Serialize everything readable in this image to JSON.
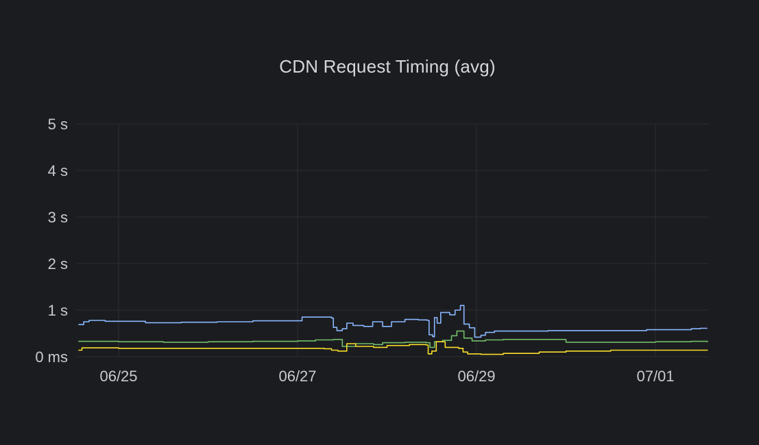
{
  "chart_data": {
    "type": "line",
    "title": "CDN Request Timing (avg)",
    "xlabel": "",
    "ylabel": "",
    "x_ticks": [
      {
        "label": "06/25",
        "day": 0
      },
      {
        "label": "06/27",
        "day": 2
      },
      {
        "label": "06/29",
        "day": 4
      },
      {
        "label": "07/01",
        "day": 6
      }
    ],
    "y_ticks": [
      {
        "label": "0 ms",
        "value": 0
      },
      {
        "label": "1 s",
        "value": 1
      },
      {
        "label": "2 s",
        "value": 2
      },
      {
        "label": "3 s",
        "value": 3
      },
      {
        "label": "4 s",
        "value": 4
      },
      {
        "label": "5 s",
        "value": 5
      }
    ],
    "ylim": [
      0,
      5
    ],
    "xlim_days": [
      -0.47,
      6.58
    ],
    "grid": true,
    "legend": "none",
    "series": [
      {
        "color": "#8ab8ff",
        "points": [
          [
            -0.45,
            0.69
          ],
          [
            -0.39,
            0.75
          ],
          [
            -0.33,
            0.78
          ],
          [
            -0.15,
            0.76
          ],
          [
            0.3,
            0.73
          ],
          [
            0.7,
            0.74
          ],
          [
            1.1,
            0.75
          ],
          [
            1.5,
            0.77
          ],
          [
            2.05,
            0.85
          ],
          [
            2.38,
            0.83
          ],
          [
            2.4,
            0.63
          ],
          [
            2.44,
            0.56
          ],
          [
            2.5,
            0.6
          ],
          [
            2.55,
            0.72
          ],
          [
            2.62,
            0.67
          ],
          [
            2.74,
            0.65
          ],
          [
            2.84,
            0.75
          ],
          [
            2.95,
            0.65
          ],
          [
            3.05,
            0.75
          ],
          [
            3.2,
            0.8
          ],
          [
            3.35,
            0.79
          ],
          [
            3.45,
            0.78
          ],
          [
            3.47,
            0.47
          ],
          [
            3.51,
            0.43
          ],
          [
            3.53,
            0.84
          ],
          [
            3.56,
            0.72
          ],
          [
            3.6,
            0.95
          ],
          [
            3.7,
            0.9
          ],
          [
            3.76,
            1.0
          ],
          [
            3.82,
            1.1
          ],
          [
            3.86,
            0.7
          ],
          [
            3.92,
            0.62
          ],
          [
            3.98,
            0.42
          ],
          [
            4.05,
            0.46
          ],
          [
            4.1,
            0.52
          ],
          [
            4.2,
            0.55
          ],
          [
            4.8,
            0.56
          ],
          [
            5.0,
            0.56
          ],
          [
            5.4,
            0.56
          ],
          [
            5.9,
            0.58
          ],
          [
            6.4,
            0.6
          ],
          [
            6.5,
            0.61
          ],
          [
            6.58,
            0.61
          ]
        ]
      },
      {
        "color": "#73bf69",
        "points": [
          [
            -0.45,
            0.33
          ],
          [
            0.0,
            0.32
          ],
          [
            0.5,
            0.31
          ],
          [
            1.0,
            0.32
          ],
          [
            1.5,
            0.33
          ],
          [
            2.0,
            0.34
          ],
          [
            2.2,
            0.36
          ],
          [
            2.4,
            0.37
          ],
          [
            2.5,
            0.22
          ],
          [
            2.65,
            0.28
          ],
          [
            2.85,
            0.26
          ],
          [
            2.95,
            0.3
          ],
          [
            3.2,
            0.31
          ],
          [
            3.44,
            0.3
          ],
          [
            3.48,
            0.2
          ],
          [
            3.53,
            0.32
          ],
          [
            3.62,
            0.35
          ],
          [
            3.72,
            0.45
          ],
          [
            3.78,
            0.55
          ],
          [
            3.86,
            0.4
          ],
          [
            3.95,
            0.34
          ],
          [
            4.1,
            0.36
          ],
          [
            4.3,
            0.37
          ],
          [
            5.0,
            0.31
          ],
          [
            5.5,
            0.31
          ],
          [
            6.0,
            0.32
          ],
          [
            6.4,
            0.33
          ],
          [
            6.58,
            0.31
          ]
        ]
      },
      {
        "color": "#fade2a",
        "points": [
          [
            -0.45,
            0.14
          ],
          [
            -0.41,
            0.19
          ],
          [
            0.0,
            0.18
          ],
          [
            0.5,
            0.18
          ],
          [
            1.0,
            0.18
          ],
          [
            1.5,
            0.18
          ],
          [
            2.0,
            0.18
          ],
          [
            2.3,
            0.17
          ],
          [
            2.38,
            0.14
          ],
          [
            2.45,
            0.12
          ],
          [
            2.55,
            0.28
          ],
          [
            2.65,
            0.22
          ],
          [
            2.85,
            0.2
          ],
          [
            3.0,
            0.24
          ],
          [
            3.25,
            0.26
          ],
          [
            3.44,
            0.25
          ],
          [
            3.46,
            0.06
          ],
          [
            3.5,
            0.12
          ],
          [
            3.55,
            0.32
          ],
          [
            3.65,
            0.2
          ],
          [
            3.8,
            0.18
          ],
          [
            3.85,
            0.1
          ],
          [
            3.9,
            0.06
          ],
          [
            4.05,
            0.05
          ],
          [
            4.3,
            0.07
          ],
          [
            4.7,
            0.1
          ],
          [
            5.0,
            0.12
          ],
          [
            5.5,
            0.14
          ],
          [
            6.0,
            0.14
          ],
          [
            6.58,
            0.15
          ]
        ]
      }
    ]
  }
}
